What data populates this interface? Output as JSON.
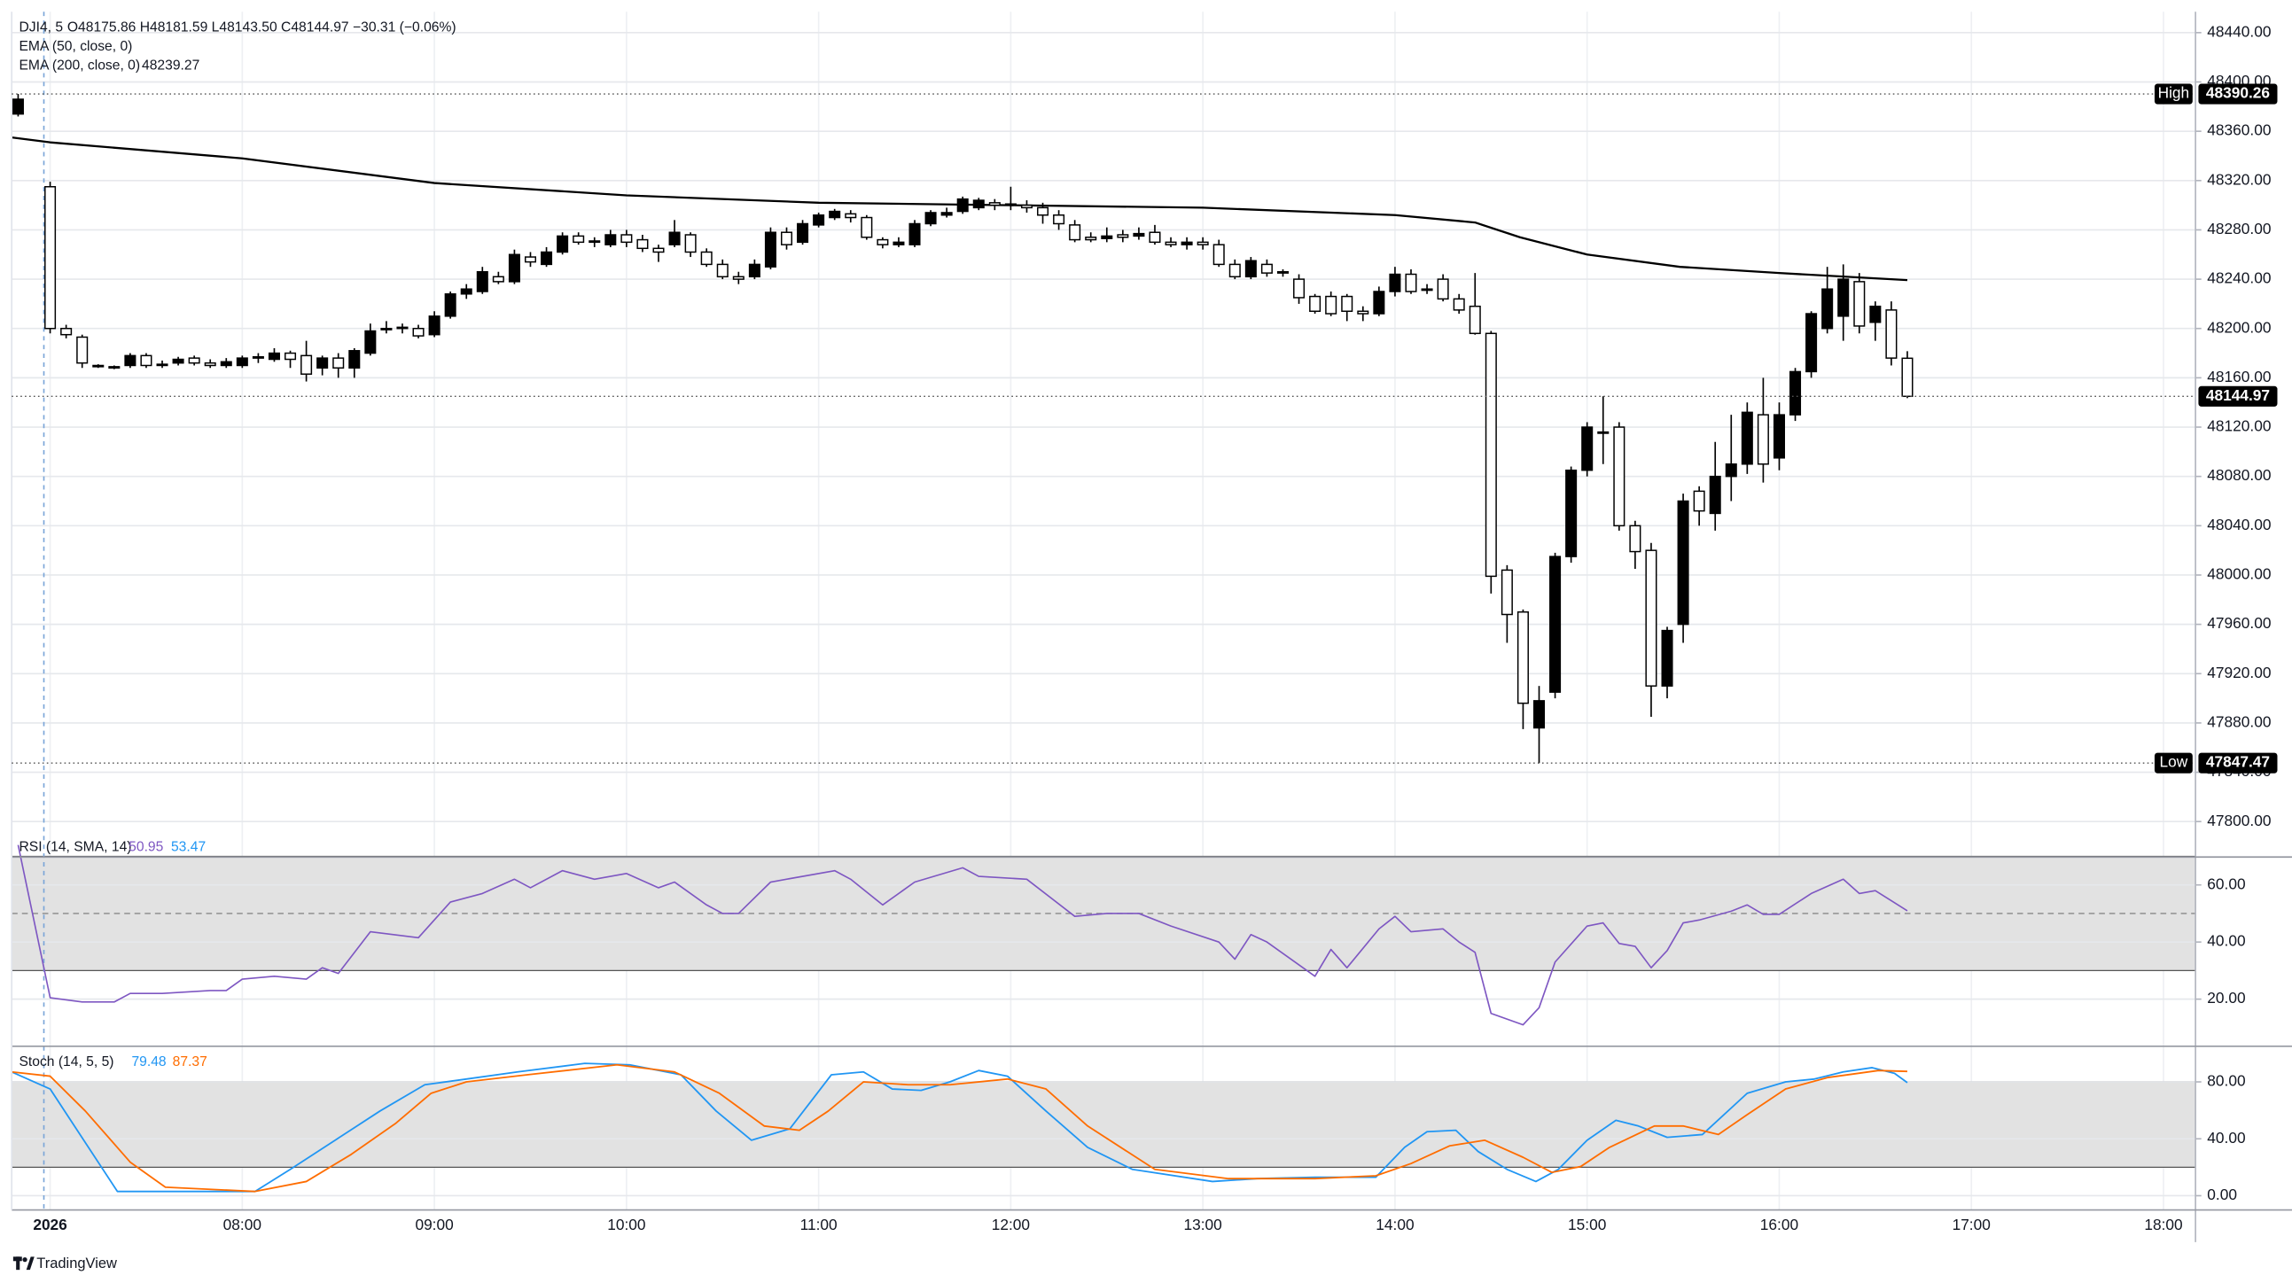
{
  "chart_data": [
    {
      "type": "candlestick",
      "symbol": "DJI4, 5",
      "ohlc_text": "O48175.86 H48181.59 L48143.50 C48144.97 −30.31 (−0.06%)",
      "x": [
        410,
        420,
        425,
        430,
        435,
        440,
        445,
        450,
        455,
        460,
        465,
        470,
        475,
        480,
        485,
        490,
        495,
        500,
        505,
        510,
        515,
        520,
        525,
        530,
        535,
        540,
        545,
        550,
        555,
        560,
        565,
        570,
        575,
        580,
        585,
        590,
        595,
        600,
        605,
        610,
        615,
        620,
        625,
        630,
        635,
        640,
        645,
        650,
        655,
        660,
        665,
        670,
        675,
        680,
        685,
        690,
        695,
        700,
        705,
        710,
        715,
        720,
        725,
        730,
        735,
        740,
        745,
        750,
        755,
        760,
        765,
        770,
        775,
        780,
        785,
        790,
        795,
        800,
        805,
        810,
        815,
        820,
        825,
        830,
        835,
        840,
        845,
        850,
        855,
        860,
        865,
        870,
        875,
        880,
        885,
        890,
        895,
        900,
        905,
        910,
        915,
        920,
        925,
        930,
        935,
        940,
        945,
        950,
        955,
        960,
        965,
        970,
        975,
        980,
        985,
        990,
        995,
        1000
      ],
      "open": [
        48374,
        48315,
        48200,
        48193,
        48170,
        48169,
        48170,
        48178,
        48171,
        48172,
        48176,
        48172,
        48170,
        48170,
        48176,
        48175,
        48180,
        48178,
        48168,
        48176,
        48168,
        48180,
        48199,
        48200,
        48200,
        48195,
        48210,
        48228,
        48230,
        48242,
        48238,
        48258,
        48252,
        48262,
        48275,
        48270,
        48268,
        48276,
        48272,
        48265,
        48268,
        48276,
        48262,
        48252,
        48242,
        48242,
        48250,
        48278,
        48270,
        48284,
        48290,
        48293,
        48290,
        48272,
        48268,
        48268,
        48285,
        48292,
        48295,
        48298,
        48302,
        48300,
        48300,
        48298,
        48292,
        48284,
        48274,
        48273,
        48276,
        48275,
        48278,
        48270,
        48268,
        48270,
        48268,
        48252,
        48242,
        48252,
        48246,
        48240,
        48226,
        48226,
        48226,
        48214,
        48212,
        48230,
        48244,
        48231,
        48240,
        48224,
        48218,
        48196,
        48004,
        47970,
        47876,
        47905,
        48015,
        48085,
        48116,
        48120,
        48040,
        48020,
        47910,
        47960,
        48068,
        48050,
        48080,
        48090,
        48130,
        48095,
        48130,
        48165,
        48200,
        48210,
        48238,
        48205,
        48215,
        48175.86
      ],
      "high": [
        48390.26,
        48319,
        48203,
        48195,
        48171,
        48170,
        48180,
        48180,
        48174,
        48177,
        48178,
        48175,
        48176,
        48178,
        48180,
        48184,
        48182,
        48190,
        48178,
        48180,
        48184,
        48204,
        48206,
        48204,
        48203,
        48214,
        48230,
        48236,
        48250,
        48246,
        48264,
        48262,
        48266,
        48278,
        48278,
        48274,
        48280,
        48280,
        48276,
        48268,
        48288,
        48278,
        48265,
        48256,
        48246,
        48256,
        48282,
        48282,
        48288,
        48294,
        48297,
        48296,
        48292,
        48274,
        48274,
        48288,
        48296,
        48298,
        48307,
        48306,
        48305,
        48315,
        48304,
        48302,
        48296,
        48288,
        48278,
        48282,
        48280,
        48282,
        48284,
        48274,
        48274,
        48274,
        48272,
        48256,
        48258,
        48256,
        48248,
        48244,
        48228,
        48230,
        48228,
        48218,
        48234,
        48250,
        48248,
        48236,
        48244,
        48228,
        48245,
        48198,
        48008,
        47972,
        47910,
        48018,
        48088,
        48124,
        48145,
        48124,
        48044,
        48026,
        47958,
        48066,
        48072,
        48108,
        48130,
        48140,
        48160,
        48140,
        48168,
        48214,
        48250,
        48252,
        48245,
        48222,
        48222,
        48181.59
      ],
      "low": [
        48372,
        48196,
        48192,
        48168,
        48168,
        48167,
        48168,
        48168,
        48168,
        48170,
        48170,
        48168,
        48168,
        48168,
        48172,
        48173,
        48168,
        48157,
        48162,
        48160,
        48160,
        48178,
        48196,
        48196,
        48192,
        48193,
        48208,
        48224,
        48228,
        48236,
        48236,
        48250,
        48250,
        48260,
        48268,
        48266,
        48266,
        48266,
        48262,
        48254,
        48266,
        48258,
        48250,
        48240,
        48236,
        48240,
        48248,
        48264,
        48268,
        48282,
        48288,
        48286,
        48272,
        48265,
        48266,
        48266,
        48283,
        48290,
        48293,
        48296,
        48296,
        48296,
        48294,
        48285,
        48280,
        48270,
        48270,
        48270,
        48270,
        48272,
        48268,
        48266,
        48264,
        48264,
        48250,
        48240,
        48240,
        48242,
        48242,
        48220,
        48212,
        48210,
        48206,
        48206,
        48210,
        48226,
        48228,
        48228,
        48222,
        48212,
        48195,
        47985,
        47945,
        47875,
        47847.47,
        47900,
        48010,
        48080,
        48090,
        48036,
        48005,
        47885,
        47900,
        47945,
        48040,
        48036,
        48060,
        48082,
        48075,
        48085,
        48125,
        48160,
        48196,
        48190,
        48196,
        48190,
        48170,
        48143.5
      ],
      "close": [
        48386,
        48200,
        48195,
        48172,
        48169,
        48168,
        48178,
        48170,
        48170,
        48175,
        48172,
        48170,
        48173,
        48176,
        48177,
        48180,
        48175,
        48163,
        48176,
        48168,
        48182,
        48198,
        48200,
        48201,
        48194,
        48210,
        48228,
        48232,
        48246,
        48238,
        48260,
        48254,
        48262,
        48275,
        48270,
        48271,
        48276,
        48270,
        48265,
        48262,
        48278,
        48262,
        48252,
        48242,
        48240,
        48252,
        48278,
        48268,
        48285,
        48292,
        48295,
        48290,
        48274,
        48268,
        48270,
        48285,
        48294,
        48294,
        48305,
        48304,
        48300,
        48301,
        48298,
        48292,
        48285,
        48272,
        48272,
        48275,
        48274,
        48277,
        48270,
        48268,
        48270,
        48268,
        48252,
        48242,
        48255,
        48245,
        48245,
        48225,
        48214,
        48212,
        48214,
        48212,
        48230,
        48244,
        48230,
        48232,
        48224,
        48215,
        48196,
        47999,
        47968,
        47896,
        47898,
        48015,
        48085,
        48120,
        48115,
        48040,
        48019,
        47910,
        47955,
        48060,
        48052,
        48080,
        48090,
        48132,
        48090,
        48130,
        48165,
        48212,
        48232,
        48240,
        48202,
        48218,
        48176,
        48144.97
      ],
      "up_color": "#000000",
      "down_color": "#ffffff",
      "overlays": [
        {
          "type": "line",
          "name": "EMA (50, close, 0)"
        },
        {
          "type": "line",
          "name": "EMA (200, close, 0)",
          "last_value": 48239.27,
          "color": "#000000",
          "x": [
            408,
            420,
            480,
            540,
            600,
            660,
            720,
            780,
            840,
            865,
            879,
            900,
            929,
            960,
            1000
          ],
          "values": [
            48355,
            48351,
            48338,
            48318,
            48308,
            48302,
            48300,
            48298,
            48292,
            48286,
            48274,
            48260,
            48250,
            48245,
            48239.27
          ]
        }
      ],
      "markers": [
        {
          "label": "High",
          "value": 48390.26
        },
        {
          "label": "Low",
          "value": 47847.47
        }
      ],
      "last_price": 48144.97,
      "ylim": [
        47773,
        48457
      ],
      "yticks": [
        {
          "value": 47800,
          "label": "47800.00"
        },
        {
          "value": 47840,
          "label": "47840.00"
        },
        {
          "value": 47880,
          "label": "47880.00"
        },
        {
          "value": 47920,
          "label": "47920.00"
        },
        {
          "value": 47960,
          "label": "47960.00"
        },
        {
          "value": 48000,
          "label": "48000.00"
        },
        {
          "value": 48040,
          "label": "48040.00"
        },
        {
          "value": 48080,
          "label": "48080.00"
        },
        {
          "value": 48120,
          "label": "48120.00"
        },
        {
          "value": 48160,
          "label": "48160.00"
        },
        {
          "value": 48200,
          "label": "48200.00"
        },
        {
          "value": 48240,
          "label": "48240.00"
        },
        {
          "value": 48280,
          "label": "48280.00"
        },
        {
          "value": 48320,
          "label": "48320.00"
        },
        {
          "value": 48360,
          "label": "48360.00"
        },
        {
          "value": 48400,
          "label": "48400.00"
        },
        {
          "value": 48440,
          "label": "48440.00"
        }
      ],
      "grid": true
    },
    {
      "type": "line",
      "name": "RSI (14, SMA, 14)",
      "value": 50.95,
      "ma_value": 53.47,
      "color": "#7e57c2",
      "ma_color": "#2196f3",
      "x": [
        410,
        420,
        430,
        440,
        445,
        455,
        470,
        475,
        480,
        490,
        500,
        505,
        510,
        520,
        535,
        545,
        555,
        565,
        570,
        580,
        590,
        600,
        610,
        615,
        625,
        630,
        635,
        645,
        665,
        670,
        680,
        690,
        705,
        710,
        725,
        740,
        750,
        760,
        770,
        785,
        790,
        795,
        800,
        810,
        815,
        820,
        825,
        835,
        840,
        845,
        855,
        860,
        865,
        870,
        880,
        885,
        890,
        900,
        905,
        910,
        915,
        920,
        925,
        930,
        935,
        945,
        950,
        955,
        960,
        970,
        980,
        985,
        990,
        1000
      ],
      "values": [
        74,
        20.5,
        19,
        19,
        22,
        22,
        23,
        23,
        27,
        28,
        27,
        31,
        29,
        43.6,
        41.5,
        54,
        57,
        62,
        59,
        65,
        62,
        64,
        59,
        61,
        53,
        50,
        50,
        61,
        65,
        62,
        53,
        61,
        66,
        63,
        62,
        49,
        50,
        50,
        45.6,
        40,
        34,
        42.6,
        40,
        32,
        28,
        37.4,
        31,
        44.6,
        49,
        43.6,
        44.6,
        40,
        36.4,
        15,
        11,
        17,
        33,
        45.6,
        46.7,
        39.5,
        38.5,
        31,
        37,
        46.7,
        47.7,
        50.8,
        53,
        49.7,
        49.7,
        57,
        62,
        57,
        58,
        50.95
      ],
      "ylim": [
        4,
        69
      ],
      "yticks": [
        {
          "value": 20,
          "label": "20.00"
        },
        {
          "value": 40,
          "label": "40.00"
        },
        {
          "value": 60,
          "label": "60.00"
        }
      ],
      "band": [
        30,
        70
      ],
      "midline": 50,
      "grid": true
    },
    {
      "type": "line",
      "name": "Stoch (14, 5, 5)",
      "series": [
        {
          "color": "#2196f3",
          "last_value": 79.48,
          "x": [
            408,
            420,
            441,
            484,
            495,
            509,
            523,
            537,
            550,
            566,
            587,
            601,
            617,
            628,
            639,
            651,
            664,
            674,
            683,
            692,
            701,
            710,
            719,
            731,
            744,
            758,
            783,
            797,
            815,
            834,
            843,
            850,
            859,
            866,
            875,
            884,
            891,
            900,
            909,
            916,
            925,
            936,
            950,
            962,
            971,
            980,
            989,
            996,
            1000
          ],
          "values": [
            87,
            75,
            3,
            3,
            18.5,
            39,
            59.5,
            78,
            82,
            87,
            93,
            92,
            85,
            59.5,
            39,
            47,
            85,
            87,
            75,
            74,
            80,
            88,
            84,
            59.5,
            34,
            18.5,
            10,
            12,
            13,
            13,
            34,
            45,
            46,
            31,
            18.5,
            10,
            18.5,
            39,
            53,
            49,
            41,
            43,
            72,
            80,
            82,
            87,
            90,
            86,
            79.48
          ]
        },
        {
          "color": "#ff6d00",
          "last_value": 87.37,
          "x": [
            408,
            420,
            431,
            445,
            456,
            484,
            500,
            514,
            528,
            539,
            550,
            569,
            597,
            615,
            629,
            643,
            654,
            663,
            674,
            688,
            701,
            719,
            731,
            744,
            765,
            788,
            815,
            834,
            845,
            857,
            868,
            880,
            889,
            898,
            907,
            921,
            930,
            941,
            950,
            962,
            975,
            991,
            1000
          ],
          "values": [
            87,
            84,
            59.5,
            23.6,
            6,
            3,
            10,
            29,
            51,
            72,
            80,
            85,
            92,
            87,
            72,
            49,
            46,
            59.5,
            80,
            78,
            78,
            82,
            75,
            49,
            18.5,
            12,
            12,
            14,
            22.6,
            35,
            39,
            27,
            16.4,
            20.5,
            34,
            49,
            49,
            43,
            57,
            75,
            83,
            88,
            87.37
          ]
        }
      ],
      "ylim": [
        -10,
        104
      ],
      "yticks": [
        {
          "value": 0,
          "label": "0.00"
        },
        {
          "value": 40,
          "label": "40.00"
        },
        {
          "value": 80,
          "label": "80.00"
        }
      ],
      "band": [
        20,
        80
      ],
      "grid": true
    }
  ],
  "x_axis": {
    "xlim": [
      408,
      1090
    ],
    "xticks": [
      {
        "value": 420,
        "label": "2026"
      },
      {
        "value": 480,
        "label": "08:00"
      },
      {
        "value": 540,
        "label": "09:00"
      },
      {
        "value": 600,
        "label": "10:00"
      },
      {
        "value": 660,
        "label": "11:00"
      },
      {
        "value": 720,
        "label": "12:00"
      },
      {
        "value": 780,
        "label": "13:00"
      },
      {
        "value": 840,
        "label": "14:00"
      },
      {
        "value": 900,
        "label": "15:00"
      },
      {
        "value": 960,
        "label": "16:00"
      },
      {
        "value": 1020,
        "label": "17:00"
      },
      {
        "value": 1080,
        "label": "18:00"
      }
    ]
  },
  "branding": "TradingView"
}
